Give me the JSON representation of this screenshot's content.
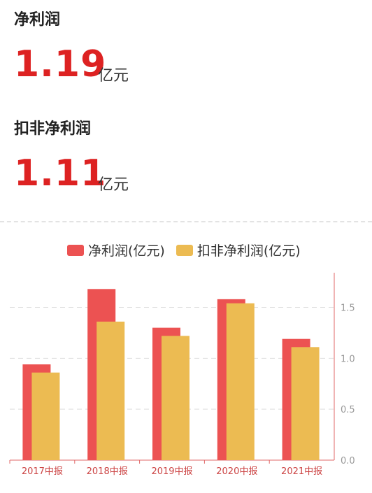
{
  "metrics": [
    {
      "title": "净利润",
      "value": "1.19",
      "unit": "亿元"
    },
    {
      "title": "扣非净利润",
      "value": "1.11",
      "unit": "亿元"
    }
  ],
  "colors": {
    "net_profit": "#ec5252",
    "deducted": "#ecbb52",
    "axis": "#e06a6a",
    "tick_text": "#999999",
    "grid": "#dddddd"
  },
  "chart_data": {
    "type": "bar",
    "categories": [
      "2017中报",
      "2018中报",
      "2019中报",
      "2020中报",
      "2021中报"
    ],
    "series": [
      {
        "name": "净利润(亿元)",
        "values": [
          0.94,
          1.68,
          1.3,
          1.58,
          1.19
        ]
      },
      {
        "name": "扣非净利润(亿元)",
        "values": [
          0.86,
          1.36,
          1.22,
          1.54,
          1.11
        ]
      }
    ],
    "y_ticks": [
      "0.0",
      "0.5",
      "1.0",
      "1.5"
    ],
    "ylim": [
      0,
      1.84
    ],
    "yaxis_position": "right",
    "legend": "top",
    "grid": true
  }
}
